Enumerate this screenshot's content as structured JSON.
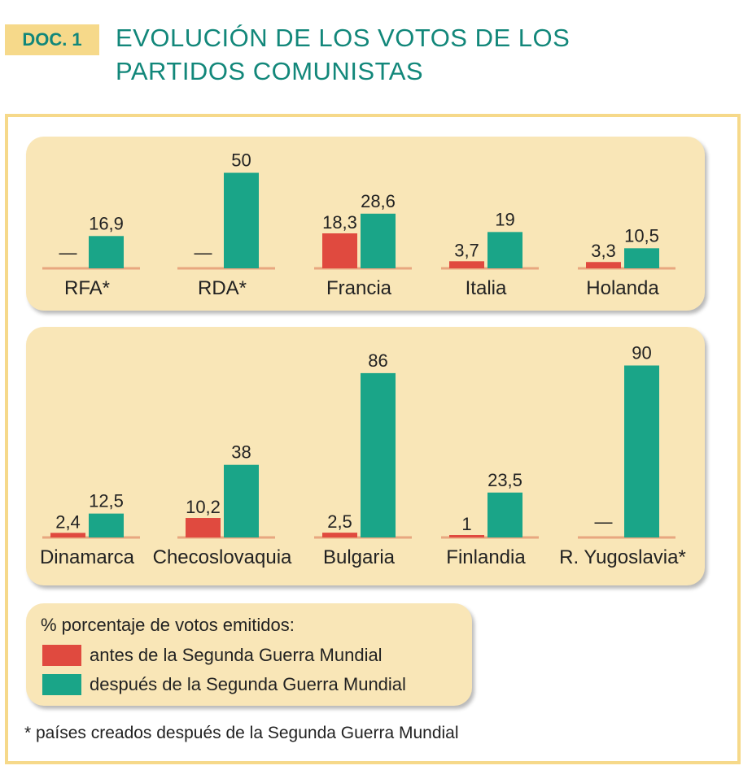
{
  "header": {
    "tag": "DOC. 1",
    "title_line1": "EVOLUCIÓN DE LOS VOTOS DE LOS",
    "title_line2": "PARTIDOS COMUNISTAS"
  },
  "colors": {
    "accent_teal": "#12877a",
    "tag_bg": "#f6d98a",
    "panel_bg": "#f9e6b7",
    "before_war": "#e04a3f",
    "after_war": "#1aa588",
    "baseline": "#e8a77f"
  },
  "chart_data": {
    "type": "bar",
    "title": "EVOLUCIÓN DE LOS VOTOS DE LOS PARTIDOS COMUNISTAS",
    "ylabel": "% porcentaje de votos emitidos:",
    "ylim": [
      0,
      90
    ],
    "grid": false,
    "legend_position": "bottom-left",
    "series": [
      {
        "name": "antes de la Segunda Guerra Mundial",
        "color": "#e04a3f"
      },
      {
        "name": "después de la Segunda Guerra Mundial",
        "color": "#1aa588"
      }
    ],
    "rows": [
      {
        "countries": [
          {
            "name": "RFA*",
            "before": null,
            "before_label": "—",
            "after": 16.9,
            "after_label": "16,9"
          },
          {
            "name": "RDA*",
            "before": null,
            "before_label": "—",
            "after": 50,
            "after_label": "50"
          },
          {
            "name": "Francia",
            "before": 18.3,
            "before_label": "18,3",
            "after": 28.6,
            "after_label": "28,6"
          },
          {
            "name": "Italia",
            "before": 3.7,
            "before_label": "3,7",
            "after": 19,
            "after_label": "19"
          },
          {
            "name": "Holanda",
            "before": 3.3,
            "before_label": "3,3",
            "after": 10.5,
            "after_label": "10,5"
          }
        ]
      },
      {
        "countries": [
          {
            "name": "Dinamarca",
            "before": 2.4,
            "before_label": "2,4",
            "after": 12.5,
            "after_label": "12,5"
          },
          {
            "name": "Checoslovaquia",
            "before": 10.2,
            "before_label": "10,2",
            "after": 38,
            "after_label": "38"
          },
          {
            "name": "Bulgaria",
            "before": 2.5,
            "before_label": "2,5",
            "after": 86,
            "after_label": "86"
          },
          {
            "name": "Finlandia",
            "before": 1,
            "before_label": "1",
            "after": 23.5,
            "after_label": "23,5"
          },
          {
            "name": "R. Yugoslavia*",
            "before": null,
            "before_label": "—",
            "after": 90,
            "after_label": "90"
          }
        ]
      }
    ]
  },
  "legend": {
    "title": "% porcentaje de votos emitidos:",
    "before_label": "antes de la Segunda Guerra Mundial",
    "after_label": "después de la Segunda Guerra Mundial"
  },
  "footnote": "* países creados después de la Segunda Guerra Mundial"
}
